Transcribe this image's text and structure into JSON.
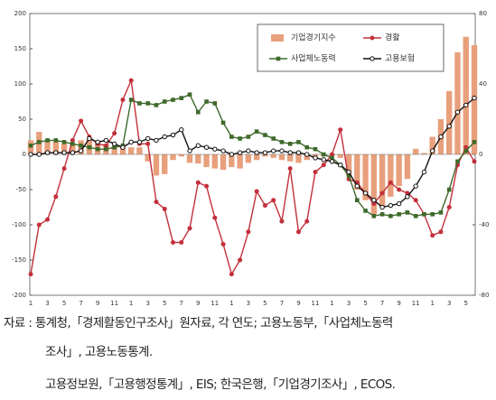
{
  "chart_data": {
    "type": "bar_line",
    "categories": [
      "1",
      null,
      "3",
      null,
      "5",
      null,
      "7",
      null,
      "9",
      null,
      "11",
      null,
      "1",
      null,
      "3",
      null,
      "5",
      null,
      "7",
      null,
      "9",
      null,
      "11",
      null,
      "1",
      null,
      "3",
      null,
      "5",
      null,
      "7",
      null,
      "9",
      null,
      "11",
      null,
      "1",
      null,
      "3",
      null,
      "5",
      null,
      "7",
      null,
      "9",
      null,
      "11",
      null,
      "1",
      null,
      "3",
      null,
      "5",
      null
    ],
    "year_labels": [
      "'17",
      "'18",
      "'19",
      "'20",
      "'21"
    ],
    "ylim": [
      -200,
      200
    ],
    "yticks": [
      -200,
      -150,
      -100,
      -50,
      0,
      50,
      100,
      150,
      200
    ],
    "y2lim": [
      -80,
      80
    ],
    "y2ticks": [
      -80,
      -40,
      0,
      40,
      80
    ],
    "series": [
      {
        "name": "기업경기지수",
        "type": "bar",
        "color": "#e8a07c",
        "values": [
          20,
          32,
          20,
          18,
          15,
          15,
          20,
          22,
          18,
          15,
          12,
          12,
          10,
          10,
          -10,
          -30,
          -28,
          -8,
          -3,
          -12,
          -13,
          -18,
          -20,
          -22,
          -18,
          -20,
          -12,
          -8,
          -3,
          -5,
          -8,
          -10,
          -12,
          -8,
          -5,
          -3,
          -2,
          -5,
          -30,
          -50,
          -65,
          -85,
          -75,
          -60,
          -45,
          -35,
          8,
          2,
          25,
          50,
          90,
          145,
          167,
          155
        ]
      },
      {
        "name": "경활",
        "type": "line",
        "axis": "y2",
        "marker": "circle",
        "color": "#c3303b",
        "values": [
          -68,
          -40,
          -37,
          -24,
          -8,
          8,
          19,
          10,
          6,
          5,
          12,
          31,
          42,
          6,
          6,
          -27,
          -31,
          -50,
          -50,
          -42,
          -16,
          -18,
          -36,
          -51,
          -68,
          -60,
          -44,
          -21,
          -29,
          -26,
          -38,
          -8,
          -44,
          -38,
          -10,
          -6,
          0,
          14,
          -14,
          -16,
          -22,
          -28,
          -22,
          -16,
          -20,
          -22,
          -26,
          -34,
          -46,
          -44,
          -30,
          -6,
          4,
          -4
        ]
      },
      {
        "name": "사업체노동력",
        "type": "line",
        "axis": "y2",
        "marker": "square",
        "color": "#3e6a2b",
        "values": [
          5,
          7,
          8,
          8,
          7,
          6,
          5,
          4,
          3,
          3,
          4,
          5,
          31,
          29,
          29,
          28,
          30,
          31,
          32,
          34,
          24,
          30,
          29,
          18,
          10,
          9,
          10,
          13,
          11,
          9,
          7,
          6,
          7,
          4,
          3,
          0,
          -2,
          -6,
          -12,
          -26,
          -32,
          -35,
          -34,
          -35,
          -34,
          -33,
          -35,
          -34,
          -34,
          -33,
          -20,
          -4,
          2,
          7
        ]
      },
      {
        "name": "고용보험",
        "type": "line",
        "axis": "y2",
        "marker": "open-circle",
        "color": "#111111",
        "values": [
          0,
          0,
          1,
          1,
          1,
          1,
          2,
          9,
          7,
          8,
          6,
          4,
          7,
          7,
          9,
          8,
          10,
          11,
          14,
          2,
          5,
          4,
          3,
          2,
          0,
          1,
          2,
          1,
          1,
          2,
          2,
          1,
          1,
          0,
          -2,
          -3,
          -4,
          -6,
          -10,
          -18,
          -22,
          -26,
          -30,
          -29,
          -28,
          -24,
          -18,
          -10,
          2,
          10,
          16,
          24,
          28,
          32
        ]
      }
    ],
    "notes": [
      "자료 : 통계청,「경제활동인구조사」원자료, 각 연도; 고용노동부,「사업체노동력",
      "조사」, 고용노동통계.",
      "고용정보원,「고용행정통계」, EIS; 한국은행,「기업경기조사」, ECOS."
    ]
  }
}
